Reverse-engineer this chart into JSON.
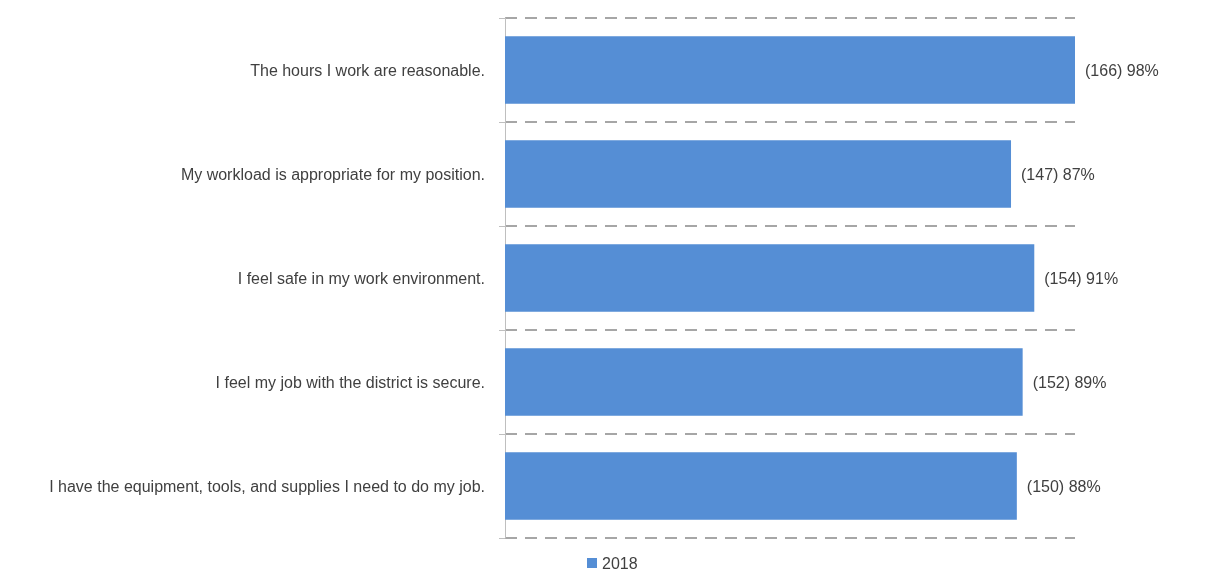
{
  "chart_data": {
    "type": "bar",
    "orientation": "horizontal",
    "categories": [
      "The hours I work are reasonable.",
      "My workload is appropriate for my position.",
      "I feel safe in my work environment.",
      "I feel my job with the district is secure.",
      "I have the equipment, tools, and supplies I need to do my job."
    ],
    "series": [
      {
        "name": "2018",
        "color": "#558ed5",
        "values": [
          98,
          87,
          91,
          89,
          88
        ],
        "value_labels": [
          "(166) 98%",
          "(147) 87%",
          "(154) 91%",
          "(152) 89%",
          "(150) 88%"
        ]
      }
    ],
    "grid": "y",
    "legend": "bottom",
    "tick_labels": "y"
  }
}
